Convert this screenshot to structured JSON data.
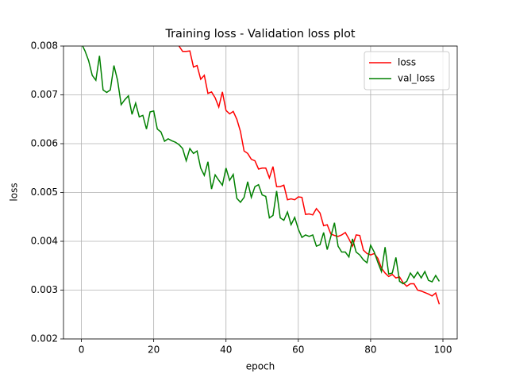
{
  "chart_data": {
    "type": "line",
    "title": "Training loss - Validation loss plot",
    "x_label": "epoch",
    "y_label": "loss",
    "x": [
      0,
      1,
      2,
      3,
      4,
      5,
      6,
      7,
      8,
      9,
      10,
      11,
      12,
      13,
      14,
      15,
      16,
      17,
      18,
      19,
      20,
      21,
      22,
      23,
      24,
      25,
      26,
      27,
      28,
      29,
      30,
      31,
      32,
      33,
      34,
      35,
      36,
      37,
      38,
      39,
      40,
      41,
      42,
      43,
      44,
      45,
      46,
      47,
      48,
      49,
      50,
      51,
      52,
      53,
      54,
      55,
      56,
      57,
      58,
      59,
      60,
      61,
      62,
      63,
      64,
      65,
      66,
      67,
      68,
      69,
      70,
      71,
      72,
      73,
      74,
      75,
      76,
      77,
      78,
      79,
      80,
      81,
      82,
      83,
      84,
      85,
      86,
      87,
      88,
      89,
      90,
      91,
      92,
      93,
      94,
      95,
      96,
      97,
      98,
      99
    ],
    "series": [
      {
        "name": "loss",
        "color": "#ff0000",
        "values": [
          null,
          null,
          null,
          null,
          null,
          null,
          null,
          null,
          null,
          null,
          null,
          null,
          null,
          null,
          null,
          null,
          null,
          null,
          null,
          null,
          null,
          null,
          null,
          null,
          null,
          null,
          null,
          0.008,
          0.00789,
          0.00789,
          0.0079,
          0.00757,
          0.0076,
          0.00732,
          0.0074,
          0.00703,
          0.00706,
          0.00694,
          0.00675,
          0.00706,
          0.00668,
          0.00661,
          0.00666,
          0.0065,
          0.00625,
          0.00585,
          0.0058,
          0.00568,
          0.00565,
          0.00548,
          0.0055,
          0.0055,
          0.0053,
          0.00553,
          0.00512,
          0.00512,
          0.00515,
          0.00485,
          0.00487,
          0.00485,
          0.00491,
          0.0049,
          0.00455,
          0.00456,
          0.00454,
          0.00467,
          0.00458,
          0.00432,
          0.00434,
          0.00415,
          0.00412,
          0.0041,
          0.00413,
          0.00418,
          0.00405,
          0.0039,
          0.00413,
          0.00412,
          0.00382,
          0.00375,
          0.00372,
          0.00375,
          0.00365,
          0.00345,
          0.00335,
          0.00328,
          0.00332,
          0.00325,
          0.00327,
          0.00315,
          0.00308,
          0.00313,
          0.00313,
          0.003,
          0.00298,
          0.00295,
          0.00292,
          0.00288,
          0.00294,
          0.00271
        ]
      },
      {
        "name": "val_loss",
        "color": "#008000",
        "values": [
          0.00805,
          0.0079,
          0.0077,
          0.0074,
          0.0073,
          0.0078,
          0.0071,
          0.00705,
          0.0071,
          0.0076,
          0.0073,
          0.0068,
          0.0069,
          0.00698,
          0.0066,
          0.00683,
          0.00655,
          0.00658,
          0.0063,
          0.00665,
          0.00667,
          0.0063,
          0.00624,
          0.00605,
          0.0061,
          0.00606,
          0.00603,
          0.00598,
          0.0059,
          0.00565,
          0.0059,
          0.0058,
          0.00585,
          0.0055,
          0.00535,
          0.00563,
          0.00507,
          0.00536,
          0.00525,
          0.00515,
          0.0055,
          0.00525,
          0.00537,
          0.00488,
          0.0048,
          0.0049,
          0.00522,
          0.0049,
          0.00512,
          0.00516,
          0.00495,
          0.00492,
          0.00448,
          0.00453,
          0.00503,
          0.00448,
          0.00443,
          0.0046,
          0.00434,
          0.00449,
          0.00425,
          0.00408,
          0.00413,
          0.0041,
          0.00413,
          0.0039,
          0.00393,
          0.00418,
          0.00383,
          0.0041,
          0.00438,
          0.0039,
          0.00378,
          0.00378,
          0.00368,
          0.00405,
          0.00378,
          0.00372,
          0.00362,
          0.00356,
          0.00392,
          0.00378,
          0.00357,
          0.00338,
          0.00388,
          0.00333,
          0.00335,
          0.00367,
          0.00318,
          0.00313,
          0.00318,
          0.00335,
          0.00325,
          0.00337,
          0.00325,
          0.00338,
          0.0032,
          0.00317,
          0.0033,
          0.00318
        ]
      }
    ],
    "xlim": [
      -4.95,
      103.95
    ],
    "xticks": [
      0,
      20,
      40,
      60,
      80,
      100
    ],
    "ylim": [
      0.002,
      0.008
    ],
    "yticks": [
      0.002,
      0.003,
      0.004,
      0.005,
      0.006,
      0.007,
      0.008
    ],
    "grid": true,
    "legend": "upper right"
  }
}
